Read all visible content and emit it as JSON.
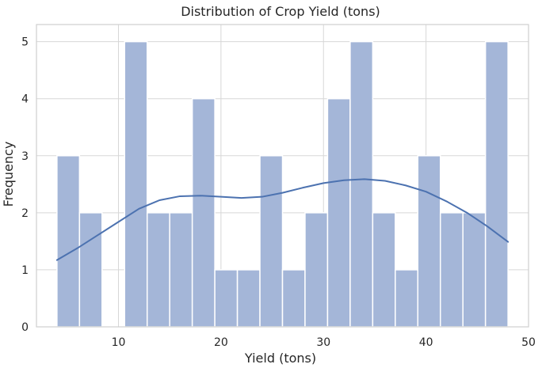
{
  "chart_data": {
    "type": "histogram",
    "title": "Distribution of Crop Yield (tons)",
    "xlabel": "Yield (tons)",
    "ylabel": "Frequency",
    "xlim": [
      2,
      50
    ],
    "ylim": [
      0,
      5.3
    ],
    "xticks": [
      10,
      20,
      30,
      40,
      50
    ],
    "yticks": [
      0,
      1,
      2,
      3,
      4,
      5
    ],
    "grid": true,
    "bins": [
      {
        "start": 4.0,
        "end": 6.2,
        "value": 3
      },
      {
        "start": 6.2,
        "end": 8.4,
        "value": 2
      },
      {
        "start": 8.4,
        "end": 10.6,
        "value": 0
      },
      {
        "start": 10.6,
        "end": 12.8,
        "value": 5
      },
      {
        "start": 12.8,
        "end": 15.0,
        "value": 2
      },
      {
        "start": 15.0,
        "end": 17.2,
        "value": 2
      },
      {
        "start": 17.2,
        "end": 19.4,
        "value": 4
      },
      {
        "start": 19.4,
        "end": 21.6,
        "value": 1
      },
      {
        "start": 21.6,
        "end": 23.8,
        "value": 1
      },
      {
        "start": 23.8,
        "end": 26.0,
        "value": 3
      },
      {
        "start": 26.0,
        "end": 28.2,
        "value": 1
      },
      {
        "start": 28.2,
        "end": 30.4,
        "value": 2
      },
      {
        "start": 30.4,
        "end": 32.6,
        "value": 4
      },
      {
        "start": 32.6,
        "end": 34.8,
        "value": 5
      },
      {
        "start": 34.8,
        "end": 37.0,
        "value": 2
      },
      {
        "start": 37.0,
        "end": 39.2,
        "value": 1
      },
      {
        "start": 39.2,
        "end": 41.4,
        "value": 3
      },
      {
        "start": 41.4,
        "end": 43.6,
        "value": 2
      },
      {
        "start": 43.6,
        "end": 45.8,
        "value": 2
      },
      {
        "start": 45.8,
        "end": 48.0,
        "value": 5
      }
    ],
    "kde": [
      {
        "x": 4.0,
        "y": 1.17
      },
      {
        "x": 6.0,
        "y": 1.38
      },
      {
        "x": 8.0,
        "y": 1.61
      },
      {
        "x": 10.0,
        "y": 1.84
      },
      {
        "x": 12.0,
        "y": 2.07
      },
      {
        "x": 14.0,
        "y": 2.22
      },
      {
        "x": 16.0,
        "y": 2.29
      },
      {
        "x": 18.0,
        "y": 2.3
      },
      {
        "x": 20.0,
        "y": 2.28
      },
      {
        "x": 22.0,
        "y": 2.26
      },
      {
        "x": 24.0,
        "y": 2.28
      },
      {
        "x": 26.0,
        "y": 2.35
      },
      {
        "x": 28.0,
        "y": 2.44
      },
      {
        "x": 30.0,
        "y": 2.52
      },
      {
        "x": 32.0,
        "y": 2.57
      },
      {
        "x": 34.0,
        "y": 2.59
      },
      {
        "x": 36.0,
        "y": 2.56
      },
      {
        "x": 38.0,
        "y": 2.48
      },
      {
        "x": 40.0,
        "y": 2.37
      },
      {
        "x": 42.0,
        "y": 2.2
      },
      {
        "x": 44.0,
        "y": 2.0
      },
      {
        "x": 46.0,
        "y": 1.76
      },
      {
        "x": 48.0,
        "y": 1.49
      }
    ],
    "colors": {
      "bar_fill": "#a4b6d8",
      "bar_edge": "#ffffff",
      "kde_line": "#4c72b0",
      "grid": "#d7d7d7",
      "axes_edge": "#cfcfcf",
      "text": "#262626"
    }
  }
}
